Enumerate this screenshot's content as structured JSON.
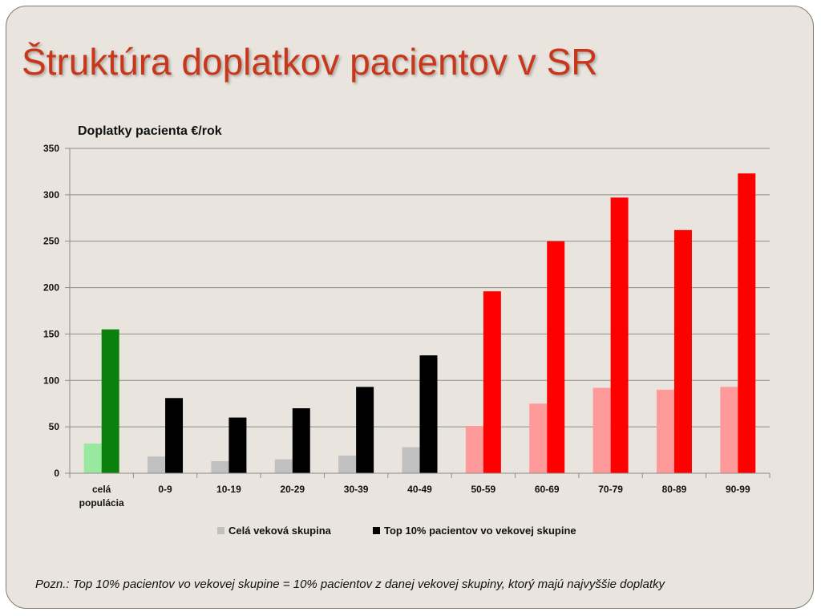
{
  "slide": {
    "title": "Štruktúra doplatkov pacientov v SR",
    "footnote": "Pozn.: Top 10% pacientov vo vekovej skupine = 10% pacientov z danej vekovej skupiny, ktorý majú najvyššie doplatky"
  },
  "chart_data": {
    "type": "bar",
    "title": "Doplatky pacienta €/rok",
    "xlabel": "",
    "ylabel": "",
    "ylim": [
      0,
      350
    ],
    "yticks": [
      0,
      50,
      100,
      150,
      200,
      250,
      300,
      350
    ],
    "grid": true,
    "legend_placement": "bottom",
    "categories": [
      [
        "celá",
        "populácia"
      ],
      [
        "0-9"
      ],
      [
        "10-19"
      ],
      [
        "20-29"
      ],
      [
        "30-39"
      ],
      [
        "40-49"
      ],
      [
        "50-59"
      ],
      [
        "60-69"
      ],
      [
        "70-79"
      ],
      [
        "80-89"
      ],
      [
        "90-99"
      ]
    ],
    "series": [
      {
        "name": "Celá veková skupina",
        "legend_color": "#c0c0c0",
        "values": [
          32,
          18,
          13,
          15,
          19,
          28,
          51,
          75,
          92,
          90,
          93
        ],
        "colors": [
          "#98e8a0",
          "#c0c0c0",
          "#c0c0c0",
          "#c0c0c0",
          "#c0c0c0",
          "#c0c0c0",
          "#ff9a9a",
          "#ff9a9a",
          "#ff9a9a",
          "#ff9a9a",
          "#ff9a9a"
        ]
      },
      {
        "name": "Top 10% pacientov vo vekovej skupine",
        "legend_color": "#000000",
        "values": [
          155,
          81,
          60,
          70,
          93,
          127,
          196,
          250,
          297,
          262,
          323
        ],
        "colors": [
          "#0c800c",
          "#000000",
          "#000000",
          "#000000",
          "#000000",
          "#000000",
          "#ff0000",
          "#ff0000",
          "#ff0000",
          "#ff0000",
          "#ff0000"
        ]
      }
    ]
  }
}
